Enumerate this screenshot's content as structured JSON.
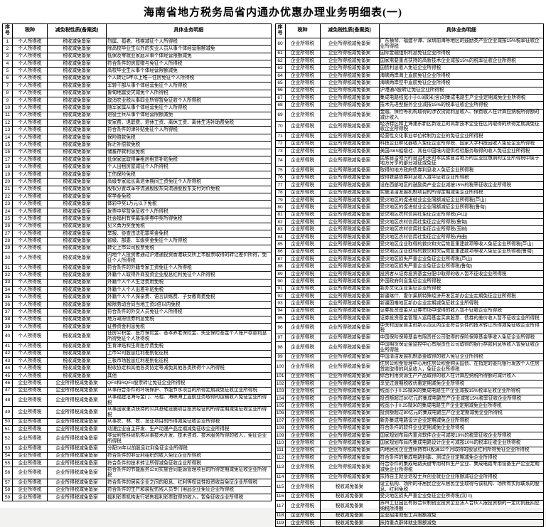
{
  "page_title": "海南省地方税务局省内通办优惠办理业务明细表(一)",
  "tables": [
    {
      "columns": [
        "序号",
        "税种",
        "减免税性质(备案类)",
        "具体业务明细"
      ],
      "rows": [
        [
          "1",
          "个人所得税",
          "税收减免备案",
          "烈属、孤老、残疾减征个人所得税"
        ],
        [
          "2",
          "个人所得税",
          "税收减免备案",
          "除高校毕业生以外的失业人员从事个体经营限额减免"
        ],
        [
          "3",
          "个人所得税",
          "税收减免备案",
          "低保及零就业家庭从事个体经营限额减免"
        ],
        [
          "4",
          "个人所得税",
          "税收减免备案",
          "符合条件的房屋赠与免征个人所得税"
        ],
        [
          "5",
          "个人所得税",
          "税收减免备案",
          "高校毕业生从事个体经营限额减免"
        ],
        [
          "6",
          "个人所得税",
          "税收减免备案",
          "个人转让5年以上唯一住房免征个人所得税"
        ],
        [
          "7",
          "个人所得税",
          "税收减免备案",
          "军转干部从事个体经营免征个人所得税"
        ],
        [
          "8",
          "个人所得税",
          "税收减免备案",
          "鲁甸地震受灾减免个人所得税"
        ],
        [
          "9",
          "个人所得税",
          "税收减免备案",
          "取消农业税从事四业所得暂免征收个人所得税"
        ],
        [
          "10",
          "个人所得税",
          "税收减免备案",
          "随军家属从事个体经营免征个人所得税"
        ],
        [
          "11",
          "个人所得税",
          "税收减免备案",
          "退役士兵从事个体经营限额减免"
        ],
        [
          "12",
          "个人所得税",
          "税收减免备案",
          "安家费、退职费、退休工资、离休工资、离休生活补助费免税"
        ],
        [
          "13",
          "个人所得税",
          "税收减免备案",
          "符合条件的津补贴免征个人所得税"
        ],
        [
          "14",
          "个人所得税",
          "税收减免备案",
          "保险赔款免税"
        ],
        [
          "15",
          "个人所得税",
          "税收减免备案",
          "拆迁补偿款免税"
        ],
        [
          "16",
          "个人所得税",
          "税收减免备案",
          "储蓄存款利息免税"
        ],
        [
          "17",
          "个人所得税",
          "税收减免备案",
          "低保家庭取得廉租房租赁补贴免税"
        ],
        [
          "18",
          "个人所得税",
          "税收减免备案",
          "个人出租房屋减征个人所得税"
        ],
        [
          "19",
          "个人所得税",
          "税收减免备案",
          "工伤保险免税"
        ],
        [
          "20",
          "个人所得税",
          "税收减免备案",
          "高级专家延长离退休期间工资免征个人所得税"
        ],
        [
          "21",
          "个人所得税",
          "税收减免备案",
          "股权分置改革非流通股股东向流通股股东支付对价免税"
        ],
        [
          "22",
          "个人所得税",
          "税收减免备案",
          "奖学金免税"
        ],
        [
          "23",
          "个人所得税",
          "税收减免备案",
          "体彩中奖1万元以下免税"
        ],
        [
          "24",
          "个人所得税",
          "税收减免备案",
          "发票中奖暂免征收个人所得税"
        ],
        [
          "25",
          "个人所得税",
          "税收减免备案",
          "社会福利有奖募捐奖券中奖所得免税"
        ],
        [
          "26",
          "个人所得税",
          "税收减免备案",
          "见义勇为奖金免税"
        ],
        [
          "27",
          "个人所得税",
          "税收减免备案",
          "举报、协查违法犯罪奖金免税"
        ],
        [
          "28",
          "个人所得税",
          "税收减免备案",
          "省级、部委、军级奖金免征个人所得税"
        ],
        [
          "29",
          "个人所得税",
          "税收减免备案",
          "转让上市公司股票免税"
        ],
        [
          "30",
          "个人所得税",
          "税收减免备案",
          "内地个人投资者通过沪港通投资香港联交所上市股票取得的转让差价所得，免征个人所得税"
        ],
        [
          "31",
          "个人所得税",
          "税收减免备案",
          "符合条件的外籍专家工资免征个人所得税"
        ],
        [
          "32",
          "个人所得税",
          "税收减免备案",
          "外籍个人取得外商投资企业股息红利免征个人所得税"
        ],
        [
          "33",
          "个人所得税",
          "税收减免备案",
          "外籍个人个人生活费用免税"
        ],
        [
          "34",
          "个人所得税",
          "税收减免备案",
          "外籍个人个人出差补贴免税"
        ],
        [
          "35",
          "个人所得税",
          "税收减免备案",
          "外籍个人个人探亲费、语言训练费、子女教育费免税"
        ],
        [
          "36",
          "个人所得税",
          "税收减免备案",
          "解除劳动合同当地工资3倍以内免税"
        ],
        [
          "37",
          "个人所得税",
          "税收减免备案",
          "符合条件的外交人员免征个人所得税"
        ],
        [
          "38",
          "个人所得税",
          "税收减免备案",
          "地方政府债券利息免税"
        ],
        [
          "39",
          "个人所得税",
          "税收减免备案",
          "证券资金利息免税"
        ],
        [
          "40",
          "个人所得税",
          "税收减免备案",
          "住房公积金、医疗保险金、基本养老保险金、失业保险基金个人账户存款利息所得免征个人所得税"
        ],
        [
          "41",
          "个人所得税",
          "税收减免备案",
          "生育津贴和生育医疗费免税"
        ],
        [
          "42",
          "个人所得税",
          "税收减免备案",
          "上市公司股息红利差别化征税"
        ],
        [
          "43",
          "个人所得税",
          "税收减免备案",
          "三板市场股息红利差别化征税"
        ],
        [
          "44",
          "个人所得税",
          "税收减免备案",
          "税收协定和其他各类协定等减免其他各类所得个人所得税"
        ],
        [
          "45",
          "个人所得税",
          "税收减免备案",
          "其他"
        ],
        [
          "46",
          "企业所得税",
          "企业所得税减免备案",
          "QFII和RQFII股票转让免征企业所得税"
        ],
        [
          "47",
          "企业所得税",
          "企业所得税减免备案",
          "从事符合条件的环境保护、节能节水项目的所得定期减免征收企业所得税"
        ],
        [
          "48",
          "企业所得税",
          "企业所得税减免备案",
          "从事福建沿海与金门、马祖、海峡海上直航业务取得的运输收入免征企业所得税"
        ],
        [
          "49",
          "企业所得税",
          "企业所得税减免备案",
          "从事国家重点扶持的公共基础设施项目投资经营的所得定期减免征收企业所得税"
        ],
        [
          "50",
          "企业所得税",
          "企业所得税减免备案",
          "从事农、林、牧、渔业项目的所得减免征收企业所得税"
        ],
        [
          "51",
          "企业所得税",
          "企业所得税减免备案",
          "动漫企业自主开发、生产动漫产品定期减免征收企业所得税"
        ],
        [
          "52",
          "企业所得税",
          "企业所得税减免备案",
          "非营利性科研机构从事技术开发、技术咨询、技术服务所得的收入，免征企业所得税"
        ],
        [
          "53",
          "企业所得税",
          "企业所得税减免备案",
          "分配08年以前股息红利免征企业所得税"
        ],
        [
          "54",
          "企业所得税",
          "企业所得税减免备案",
          "符合条件的非营利组织的收入免征企业所得税"
        ],
        [
          "55",
          "企业所得税",
          "企业所得税减免备案",
          "符合条件的技术转让所得减免征收企业所得税"
        ],
        [
          "56",
          "企业所得税",
          "企业所得税减免备案",
          "符合条件的节能服务公司实施合同能源管理项目的所得定期减免征收企业所得税"
        ],
        [
          "57",
          "企业所得税",
          "企业所得税减免备案",
          "符合条件的居民企业之间的股息、红利等权益性投资收益免征企业所得税"
        ],
        [
          "58",
          "企业所得税",
          "企业所得税减免备案",
          "符合条件的生产和装配伤残人员专门用品企业免征企业所得税"
        ],
        [
          "59",
          "企业所得税",
          "企业所得税减免备案",
          "福利彩票机构发行销售福利彩票取得的收入，暂免征收企业所得税"
        ]
      ]
    },
    {
      "columns": [
        "序号",
        "税种",
        "减免税性质(备案类)",
        "具体业务明细"
      ],
      "rows": [
        [
          "60",
          "企业所得税",
          "企业所得税减免备案",
          "广东横琴、福建平潭、深圳前海等地区的鼓励类产业企业减按15%税率征收企业所得税"
        ],
        [
          "61",
          "企业所得税",
          "企业所得税减免备案",
          "国际金融组织利息免征企业所得税"
        ],
        [
          "62",
          "企业所得税",
          "企业所得税减免备案",
          "国家需要重点扶持的高新技术企业减按15%的税率征收企业所得税"
        ],
        [
          "63",
          "企业所得税",
          "企业所得税减免备案",
          "国债利息收入免征企业所得税"
        ],
        [
          "64",
          "企业所得税",
          "企业所得税减免备案",
          "海峡两岸海上直航免征企业所得税"
        ],
        [
          "65",
          "企业所得税",
          "企业所得税减免备案",
          "海峡两岸空中直航免征企业所得税"
        ],
        [
          "66",
          "企业所得税",
          "企业所得税减免备案",
          "沪港通A股转让免征企业所得税"
        ],
        [
          "67",
          "企业所得税",
          "企业所得税减免备案",
          "集成电路线宽小于0.8微米(含)的集成电路生产企业定期减免企业所得税"
        ],
        [
          "68",
          "企业所得税",
          "企业所得税减免备案",
          "技术先进型服务企业减按15%的税率征收企业所得税"
        ],
        [
          "69",
          "企业所得税",
          "企业所得税减免备案",
          "金融、保险等机构取得的涉农贷款利息收入、保费收入在计算应纳税所得额时减计收入"
        ],
        [
          "70",
          "企业所得税",
          "企业所得税减免备案",
          "经济特区和上海浦东新区新设立的高新技术企业在区内取得的所得定期减免征收企业所得税"
        ],
        [
          "71",
          "企业所得税",
          "企业所得税减免备案",
          "经营性文化事业单位转制为企业的免征企业所得税"
        ],
        [
          "72",
          "企业所得税",
          "企业所得税减免备案",
          "科技企业孵化器收入免征企业所得税、国家大学科技园收入免征企业所得税"
        ],
        [
          "73",
          "企业所得税",
          "企业所得税减免备案",
          "美国ABS船级社、其在中国境内提供检验服务取得的收入免征企业所得税"
        ],
        [
          "74",
          "企业所得税",
          "企业所得税减免备案",
          "民族自治地方的自治机关对本民族自治地方的企业应缴纳的企业所得税中属于地方分享的部分减征或免征"
        ],
        [
          "75",
          "企业所得税",
          "企业所得税减免备案",
          "取得的地方政府债券利息收入免征企业所得税"
        ],
        [
          "76",
          "企业所得税",
          "企业所得税减免备案",
          "取得铁路债券利息收入减半征收企业所得税"
        ],
        [
          "77",
          "企业所得税",
          "企业所得税减免备案",
          "设在西部地区的鼓励类产业企业减按15%的税率征收企业所得税"
        ],
        [
          "78",
          "企业所得税",
          "企业所得税减免备案",
          "实施清洁发展机制项目的所得定期减免企业所得税"
        ],
        [
          "79",
          "企业所得税",
          "企业所得税减免备案",
          "受灾地区的促进就业企业限额减征企业所得税(芦山)"
        ],
        [
          "80",
          "企业所得税",
          "企业所得税减免备案",
          "受灾地区的促进就业企业限额减征企业所得税(鲁甸)"
        ],
        [
          "81",
          "企业所得税",
          "企业所得税减免备案",
          "受灾地区农村信用社免征企业所得税(芦山)"
        ],
        [
          "82",
          "企业所得税",
          "企业所得税减免备案",
          "受灾地区农村信用社免征企业所得税(鲁甸)"
        ],
        [
          "83",
          "企业所得税",
          "企业所得税减免备案",
          "受灾地区农村信用社免征企业所得税(玉树)"
        ],
        [
          "84",
          "企业所得税",
          "企业所得税减免备案",
          "受灾地区农村信用社免征企业所得税(舟曲)"
        ],
        [
          "85",
          "企业所得税",
          "企业所得税减免备案",
          "受灾地区企业取得的救灾和灾后恢复重建款项等收入免征企业所得税(芦山)"
        ],
        [
          "86",
          "企业所得税",
          "企业所得税减免备案",
          "受灾地区企业取得的救灾和灾后恢复重建款项等收入免征企业所得税(鲁甸)"
        ],
        [
          "87",
          "企业所得税",
          "企业所得税减免备案",
          "受灾地区损失严重企业免征企业所得税(芦山)"
        ],
        [
          "88",
          "企业所得税",
          "企业所得税减免备案",
          "受灾地区损失严重企业免征企业所得税(鲁甸)"
        ],
        [
          "89",
          "企业所得税",
          "企业所得税减免备案",
          "投资者从证券投资基金分配中取得的收入暂不征收企业所得税"
        ],
        [
          "90",
          "企业所得税",
          "企业所得税减免备案",
          "外国政府利息免征企业所得税"
        ],
        [
          "91",
          "企业所得税",
          "企业所得税减免备案",
          "新办文化企业免征企业所得税"
        ],
        [
          "92",
          "企业所得税",
          "企业所得税减免备案",
          "新疆喀什、霍尔果斯特殊经济开发区新办企业定期免征企业所得税"
        ],
        [
          "93",
          "企业所得税",
          "企业所得税减免备案",
          "新疆困难地区新办企业定期减免征收企业所得税"
        ],
        [
          "94",
          "企业所得税",
          "企业所得税减免备案",
          "证券投资基金从证券市场中取得的收入暂不征收企业所得税"
        ],
        [
          "95",
          "企业所得税",
          "企业所得税减免备案",
          "证券投资基金管理人运用基金买卖股票、债券的差价收入暂不征收企业所得税"
        ],
        [
          "96",
          "企业所得税",
          "企业所得税减免备案",
          "中关村国家自主创新示范区内企业符合条件的技术转让所得减免征收企业所得税"
        ],
        [
          "97",
          "企业所得税",
          "企业所得税减免备案",
          "中国保险保障基金有限责任公司取得的保险保障基金等收入免征企业所得税"
        ],
        [
          "98",
          "企业所得税",
          "企业所得税减免备案",
          "中国期货保证金监控中心有限责任公司取得的银行存款利息等收入暂免征收企业所得税"
        ],
        [
          "99",
          "企业所得税",
          "企业所得税减免备案",
          "中国清洁发展机制基金取得的收入免征企业所得税"
        ],
        [
          "100",
          "企业所得税",
          "企业所得税减免备案",
          "住房公积金管理中心用住房公积金购买国债、在指定的委托银行发放个人住房贷款取得的利息收入，免征企业所得税"
        ],
        [
          "101",
          "企业所得税",
          "企业所得税减免备案",
          "综合利用资源生产产品取得的收入在计算应纳税所得额时减计收入"
        ],
        [
          "102",
          "企业所得税",
          "企业所得税减免备案",
          "享受过渡期税收优惠定期减免企业所得税"
        ],
        [
          "103",
          "企业所得税",
          "企业所得税减免备案",
          "线宽小于0.25微米的集成电路生产企业减按15%税率征收企业所得税"
        ],
        [
          "104",
          "企业所得税",
          "企业所得税减免备案",
          "投资额超过80亿元的集成电路生产企业减按15%税率征收企业所得税"
        ],
        [
          "105",
          "企业所得税",
          "企业所得税减免备案",
          "线宽小于0.25微米的集成电路生产企业定期减免企业所得税"
        ],
        [
          "106",
          "企业所得税",
          "企业所得税减免备案",
          "投资额超过80亿元的集成电路生产企业定期减免企业所得税"
        ],
        [
          "107",
          "企业所得税",
          "企业所得税减免备案",
          "新办集成电路设计企业定期减免企业所得税"
        ],
        [
          "108",
          "企业所得税",
          "企业所得税减免备案",
          "符合条件的软件企业定期减免企业所得税"
        ],
        [
          "109",
          "企业所得税",
          "企业所得税减免备案",
          "国家规划布局内重点软件企业可减按10%的税率征收企业所得税"
        ],
        [
          "110",
          "企业所得税",
          "企业所得税减免备案",
          "国家规划布局内集成电路设计企业可减按10%的税率征收企业所得税"
        ],
        [
          "111",
          "企业所得税",
          "企业所得税减免备案",
          "内地居民企业连续持有H股满12个月取得的股息红利所得免征企业所得税"
        ],
        [
          "112",
          "企业所得税",
          "企业所得税减免备案",
          "符合条件的集成电路封装、测试企业定期减免企业所得税"
        ],
        [
          "113",
          "企业所得税",
          "企业所得税减免备案",
          "符合条件的集成电路关键专用材料生产企业、集成电路专用设备生产企业定期减免企业所得税"
        ],
        [
          "114",
          "企业所得税",
          "企业所得税减免备案",
          "扶持自主就业退役士兵创业就业企业限额减征企业所得税"
        ],
        [
          "115",
          "企业所得税",
          "税收减免备案",
          "设立机构、场所的非居民企业从居民企业取得与该机构、场所有实际联系的股息、红利免税"
        ],
        [
          "116",
          "企业所得税",
          "税收减免备案",
          "受灾地区损失严重企业免征企业所得税(汶川)"
        ],
        [
          "117",
          "企业所得税",
          "税收减免备案",
          "苏州工业园区有限合伙制创业投资企业法人合伙人按投资额的一定比例抵扣应纳税所得额"
        ],
        [
          "118",
          "企业所得税",
          "税收减免备案",
          "企业招用退役士兵限额减免"
        ],
        [
          "119",
          "企业所得税",
          "税收减免备案",
          "扶持重点群体就业限额减免"
        ]
      ]
    }
  ]
}
